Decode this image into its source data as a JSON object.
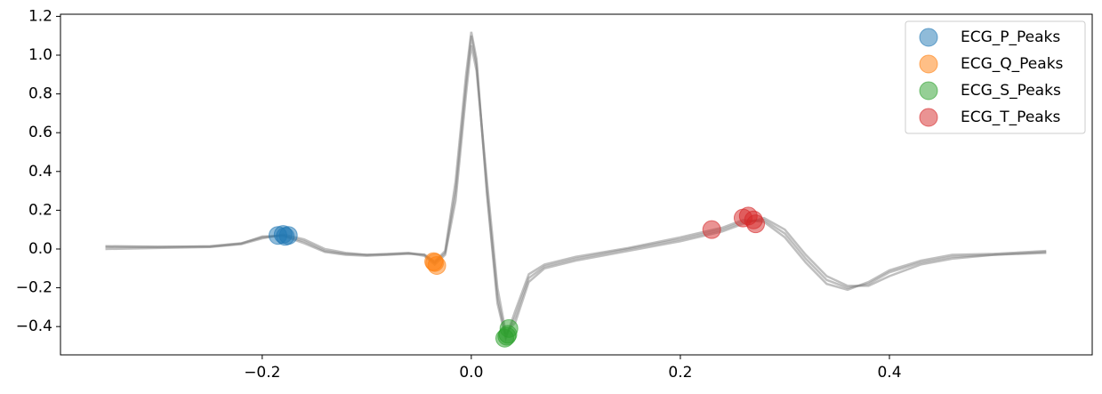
{
  "chart_data": {
    "type": "line",
    "x": [
      -0.35,
      -0.3,
      -0.25,
      -0.22,
      -0.2,
      -0.18,
      -0.16,
      -0.14,
      -0.12,
      -0.1,
      -0.08,
      -0.06,
      -0.045,
      -0.035,
      -0.025,
      -0.015,
      -0.005,
      0.0,
      0.005,
      0.015,
      0.025,
      0.033,
      0.042,
      0.055,
      0.07,
      0.1,
      0.15,
      0.2,
      0.24,
      0.26,
      0.28,
      0.3,
      0.32,
      0.34,
      0.36,
      0.38,
      0.4,
      0.43,
      0.46,
      0.5,
      0.55
    ],
    "series": [
      {
        "color": "#808080",
        "values": [
          0.01,
          0.01,
          0.015,
          0.03,
          0.06,
          0.07,
          0.04,
          -0.01,
          -0.025,
          -0.03,
          -0.025,
          -0.02,
          -0.03,
          -0.07,
          -0.02,
          0.3,
          0.85,
          1.1,
          0.95,
          0.3,
          -0.25,
          -0.45,
          -0.35,
          -0.15,
          -0.09,
          -0.05,
          0.0,
          0.05,
          0.1,
          0.14,
          0.15,
          0.08,
          -0.05,
          -0.16,
          -0.2,
          -0.18,
          -0.12,
          -0.07,
          -0.04,
          -0.03,
          -0.015
        ]
      },
      {
        "color": "#808080",
        "values": [
          0.0,
          0.005,
          0.01,
          0.025,
          0.055,
          0.075,
          0.05,
          0.0,
          -0.02,
          -0.03,
          -0.028,
          -0.022,
          -0.035,
          -0.08,
          -0.03,
          0.25,
          0.8,
          1.05,
          0.92,
          0.35,
          -0.2,
          -0.43,
          -0.38,
          -0.17,
          -0.1,
          -0.06,
          -0.01,
          0.04,
          0.09,
          0.13,
          0.16,
          0.1,
          -0.03,
          -0.14,
          -0.19,
          -0.19,
          -0.14,
          -0.08,
          -0.05,
          -0.03,
          -0.02
        ]
      },
      {
        "color": "#808080",
        "values": [
          0.015,
          0.012,
          0.012,
          0.028,
          0.065,
          0.068,
          0.03,
          -0.015,
          -0.03,
          -0.035,
          -0.03,
          -0.025,
          -0.028,
          -0.065,
          -0.01,
          0.35,
          0.9,
          1.12,
          0.98,
          0.28,
          -0.28,
          -0.46,
          -0.32,
          -0.13,
          -0.08,
          -0.04,
          0.005,
          0.06,
          0.11,
          0.15,
          0.14,
          0.06,
          -0.07,
          -0.18,
          -0.21,
          -0.17,
          -0.11,
          -0.06,
          -0.03,
          -0.025,
          -0.01
        ]
      }
    ],
    "peaks": [
      {
        "name": "ECG_P_Peaks",
        "color": "#1f77b4",
        "x": [
          -0.185,
          -0.18,
          -0.175,
          -0.178
        ],
        "values": [
          0.07,
          0.075,
          0.07,
          0.065
        ]
      },
      {
        "name": "ECG_Q_Peaks",
        "color": "#ff7f0e",
        "x": [
          -0.035,
          -0.033,
          -0.036
        ],
        "values": [
          -0.07,
          -0.085,
          -0.065
        ]
      },
      {
        "name": "ECG_S_Peaks",
        "color": "#2ca02c",
        "x": [
          0.032,
          0.035,
          0.036,
          0.034
        ],
        "values": [
          -0.46,
          -0.44,
          -0.41,
          -0.45
        ]
      },
      {
        "name": "ECG_T_Peaks",
        "color": "#d62728",
        "x": [
          0.23,
          0.26,
          0.265,
          0.27,
          0.272
        ],
        "values": [
          0.1,
          0.16,
          0.17,
          0.15,
          0.13
        ]
      }
    ],
    "xlim": [
      -0.393,
      0.594
    ],
    "ylim": [
      -0.546,
      1.211
    ],
    "xticks": [
      {
        "value": -0.2,
        "label": "−0.2"
      },
      {
        "value": 0.0,
        "label": "0.0"
      },
      0.2,
      0.4
    ],
    "yticks": [
      {
        "value": -0.4,
        "label": "−0.4"
      },
      {
        "value": -0.2,
        "label": "−0.2"
      },
      {
        "value": 0.0,
        "label": "0.0"
      },
      0.2,
      0.4,
      0.6,
      0.8,
      {
        "value": 1.0,
        "label": "1.0"
      },
      1.2
    ],
    "legend": "upper right"
  }
}
